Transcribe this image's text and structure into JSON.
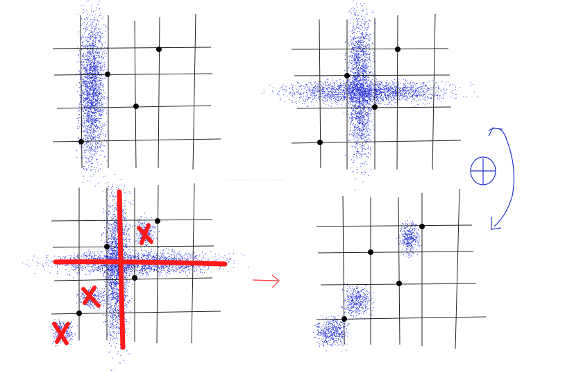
{
  "colors": {
    "background": "#ffffff",
    "grid": "#222222",
    "points": "#000000",
    "speckle": "#1f2bd9",
    "marker_red": "#ff1a1a",
    "annotation_blue": "#2233cc"
  },
  "icons": {
    "arrow": "right-arrow-icon",
    "xor_symbol": "circle-plus-icon",
    "curved_arrow": "curved-arrow-icon",
    "cross_mark": "x-mark-icon"
  }
}
